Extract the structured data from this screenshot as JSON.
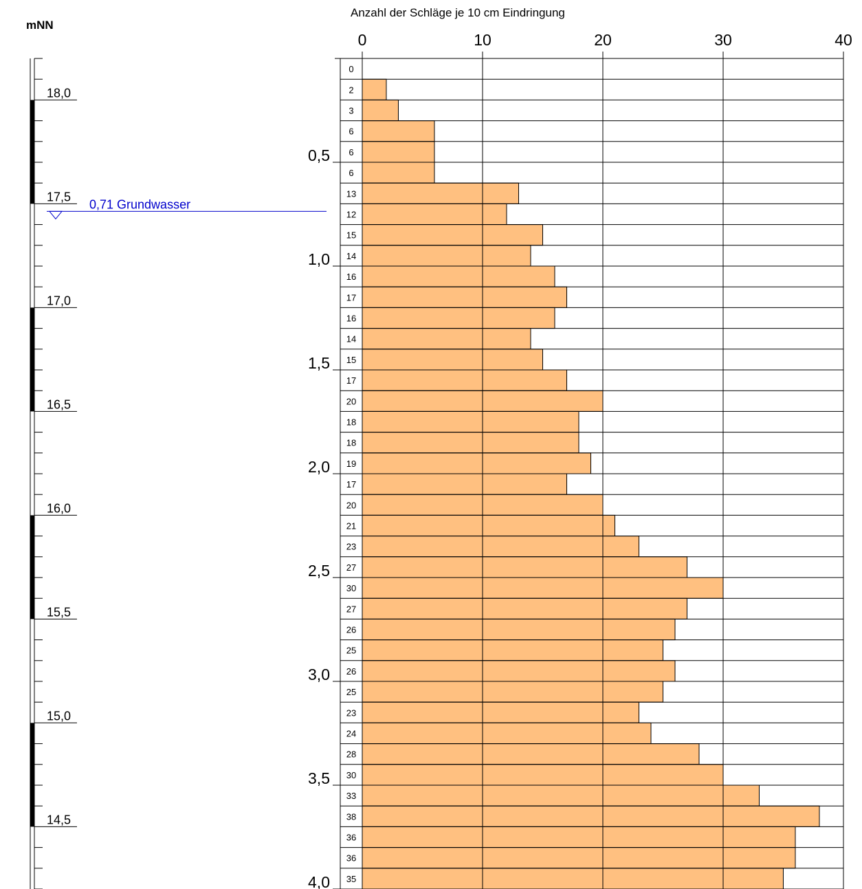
{
  "chart_data": {
    "type": "bar",
    "orientation": "horizontal",
    "title": "Anzahl der Schläge je 10 cm Eindringung",
    "x_axis": {
      "range": [
        0,
        40
      ],
      "ticks": [
        0,
        10,
        20,
        30,
        40
      ],
      "tick_labels": [
        "0",
        "10",
        "20",
        "30",
        "40"
      ],
      "grid": true
    },
    "depth_axis": {
      "unit_step_m": 0.1,
      "range": [
        0,
        4.0
      ],
      "tick_labels": [
        {
          "depth": 0.5,
          "label": "0,5"
        },
        {
          "depth": 1.0,
          "label": "1,0"
        },
        {
          "depth": 1.5,
          "label": "1,5"
        },
        {
          "depth": 2.0,
          "label": "2,0"
        },
        {
          "depth": 2.5,
          "label": "2,5"
        },
        {
          "depth": 3.0,
          "label": "3,0"
        },
        {
          "depth": 3.5,
          "label": "3,5"
        },
        {
          "depth": 4.0,
          "label": "4,0"
        }
      ]
    },
    "values": [
      0,
      2,
      3,
      6,
      6,
      6,
      13,
      12,
      15,
      14,
      16,
      17,
      16,
      14,
      15,
      17,
      20,
      18,
      18,
      19,
      17,
      20,
      21,
      23,
      27,
      30,
      27,
      26,
      25,
      26,
      25,
      23,
      24,
      28,
      30,
      33,
      38,
      36,
      36,
      35
    ],
    "bar_color": "#ffc080"
  },
  "elevation_scale": {
    "title": "mNN",
    "top_elevation": 18.2,
    "ticks": [
      {
        "elev": 18.0,
        "label": "18,0"
      },
      {
        "elev": 17.5,
        "label": "17,5"
      },
      {
        "elev": 17.0,
        "label": "17,0"
      },
      {
        "elev": 16.5,
        "label": "16,5"
      },
      {
        "elev": 16.0,
        "label": "16,0"
      },
      {
        "elev": 15.5,
        "label": "15,5"
      },
      {
        "elev": 15.0,
        "label": "15,0"
      },
      {
        "elev": 14.5,
        "label": "14,5"
      }
    ]
  },
  "groundwater": {
    "label": "0,71 Grundwasser",
    "elevation": 17.49,
    "color": "#0000cc"
  }
}
